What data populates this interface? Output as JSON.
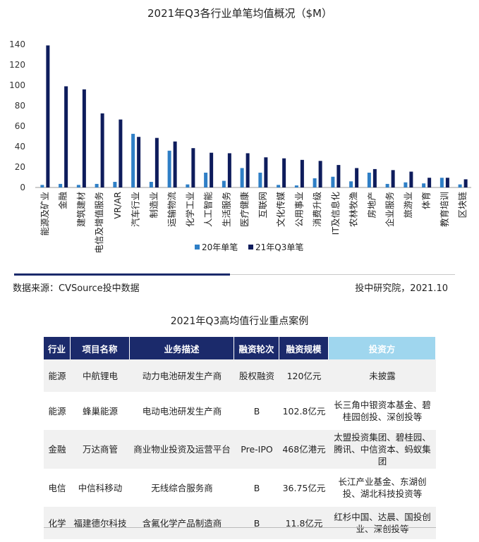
{
  "chart_data": {
    "type": "bar",
    "title": "2021年Q3各行业单笔均值概况（$M）",
    "categories": [
      "能源及矿业",
      "金融",
      "建筑建材",
      "电信及增值服务",
      "VR/AR",
      "汽车行业",
      "制造业",
      "运输物流",
      "化学工业",
      "人工智能",
      "生活服务",
      "医疗健康",
      "互联网",
      "文化传媒",
      "公用事业",
      "消费升级",
      "IT及信息化",
      "农林牧渔",
      "房地产",
      "企业服务",
      "旅游业",
      "体育",
      "教育培训",
      "区块链"
    ],
    "series": [
      {
        "name": "20年单笔",
        "color": "#2f7fc6",
        "values": [
          2.5,
          3.5,
          2.5,
          3.5,
          5.5,
          52.5,
          5.5,
          36,
          3,
          14.5,
          6.5,
          19,
          14.5,
          2.5,
          2,
          9,
          10.5,
          6,
          14.5,
          3.5,
          5,
          4,
          9.5,
          3
        ]
      },
      {
        "name": "21年Q3单笔",
        "color": "#0e1c5c",
        "values": [
          139,
          99,
          96,
          72.5,
          66.5,
          49.5,
          48.5,
          45,
          38.5,
          34,
          33.5,
          33.5,
          29.5,
          28.5,
          27,
          26,
          22,
          19,
          18,
          17,
          15.5,
          9.5,
          9.5,
          8
        ]
      }
    ],
    "yticks": [
      0,
      20,
      40,
      60,
      80,
      100,
      120,
      140
    ],
    "ylim": [
      0,
      140
    ],
    "legend_position": "bottom-center",
    "grid": false
  },
  "footer": {
    "source": "数据来源：CVSource投中数据",
    "publisher": "投中研究院，2021.10"
  },
  "table": {
    "title": "2021年Q3高均值行业重点案例",
    "headers": [
      "行业",
      "项目名称",
      "业务描述",
      "融资轮次",
      "融资规模",
      "投资方"
    ],
    "rows": [
      [
        "能源",
        "中航锂电",
        "动力电池研发生产商",
        "股权融资",
        "120亿元",
        "未披露"
      ],
      [
        "能源",
        "蜂巢能源",
        "电动电池研发生产商",
        "B",
        "102.8亿元",
        "长三角中银资本基金、碧桂园创投、深创投等"
      ],
      [
        "金融",
        "万达商管",
        "商业物业投资及运营平台",
        "Pre-IPO",
        "468亿港元",
        "太盟投资集团、碧桂园、腾讯、中信资本、蚂蚁集团"
      ],
      [
        "电信",
        "中信科移动",
        "无线综合服务商",
        "B",
        "36.75亿元",
        "长江产业基金、东湖创投、湖北科技投资等"
      ],
      [
        "化学",
        "福建德尔科技",
        "含氟化学产品制造商",
        "B",
        "11.8亿元",
        "红杉中国、达晨、国投创业、深创投等"
      ]
    ]
  }
}
